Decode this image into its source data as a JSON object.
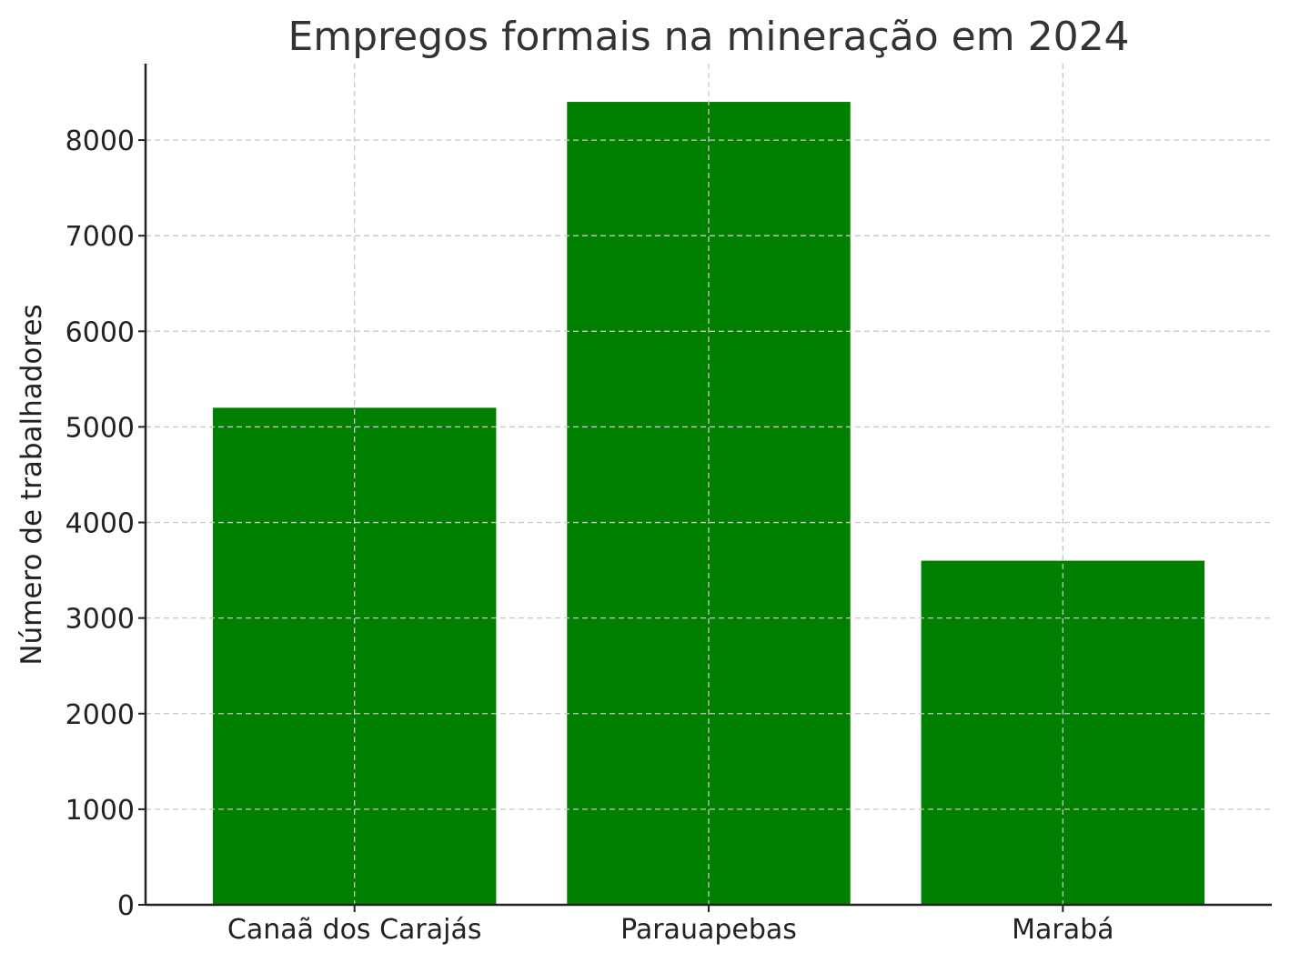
{
  "chart_data": {
    "type": "bar",
    "title": "Empregos formais na mineração em 2024",
    "xlabel": "",
    "ylabel": "Número de trabalhadores",
    "categories": [
      "Canaã dos Carajás",
      "Parauapebas",
      "Marabá"
    ],
    "values": [
      5200,
      8400,
      3600
    ],
    "ylim": [
      0,
      8800
    ],
    "yticks": [
      "0",
      "1000",
      "2000",
      "3000",
      "4000",
      "5000",
      "6000",
      "7000",
      "8000"
    ],
    "grid": true,
    "bar_color": "#007f00",
    "grid_color": "#c8c8c8",
    "axis_color": "#222222"
  }
}
